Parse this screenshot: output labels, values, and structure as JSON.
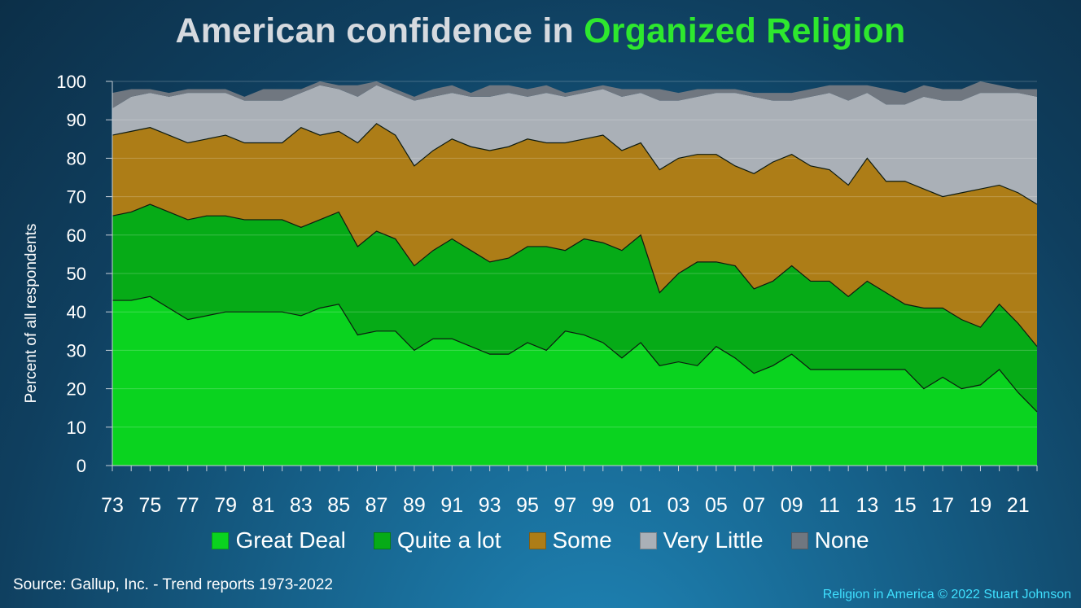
{
  "title": {
    "part1": "American confidence in ",
    "part2": "Organized Religion",
    "part1_color": "#d6dadf",
    "part2_color": "#2ee82e"
  },
  "source": "Source: Gallup, Inc. - Trend reports 1973-2022",
  "credit": "Religion in America © 2022 Stuart Johnson",
  "chart_data": {
    "type": "area",
    "stacked": true,
    "title": "American confidence in Organized Religion",
    "xlabel": "",
    "ylabel": "Percent of all respondents",
    "ylim": [
      0,
      100
    ],
    "yticks": [
      0,
      10,
      20,
      30,
      40,
      50,
      60,
      70,
      80,
      90,
      100
    ],
    "grid": "horizontal",
    "legend_position": "bottom",
    "x": [
      "1973",
      "1974",
      "1975",
      "1976",
      "1977",
      "1978",
      "1979",
      "1980",
      "1981",
      "1982",
      "1983",
      "1984",
      "1985",
      "1986",
      "1987",
      "1988",
      "1989",
      "1990",
      "1991",
      "1992",
      "1993",
      "1994",
      "1995",
      "1996",
      "1997",
      "1998",
      "1999",
      "2000",
      "2001",
      "2002",
      "2003",
      "2004",
      "2005",
      "2006",
      "2007",
      "2008",
      "2009",
      "2010",
      "2011",
      "2012",
      "2013",
      "2014",
      "2015",
      "2016",
      "2017",
      "2018",
      "2019",
      "2020",
      "2021",
      "2022"
    ],
    "x_tick_labels": [
      "73",
      "75",
      "77",
      "79",
      "81",
      "83",
      "85",
      "87",
      "89",
      "91",
      "93",
      "95",
      "97",
      "99",
      "01",
      "03",
      "05",
      "07",
      "09",
      "11",
      "13",
      "15",
      "17",
      "19",
      "21"
    ],
    "series": [
      {
        "name": "Great Deal",
        "color": "#0ad31f",
        "values": [
          43,
          43,
          44,
          41,
          38,
          39,
          40,
          40,
          40,
          40,
          39,
          41,
          42,
          34,
          35,
          35,
          30,
          33,
          33,
          31,
          29,
          29,
          32,
          30,
          35,
          34,
          32,
          28,
          32,
          26,
          27,
          26,
          31,
          28,
          24,
          26,
          29,
          25,
          25,
          25,
          25,
          25,
          25,
          20,
          23,
          20,
          21,
          25,
          19,
          14
        ]
      },
      {
        "name": "Quite a lot",
        "color": "#06ab17",
        "values": [
          22,
          23,
          24,
          25,
          26,
          26,
          25,
          24,
          24,
          24,
          23,
          23,
          24,
          23,
          26,
          24,
          22,
          23,
          26,
          25,
          24,
          25,
          25,
          27,
          21,
          25,
          26,
          28,
          28,
          19,
          23,
          27,
          22,
          24,
          22,
          22,
          23,
          23,
          23,
          19,
          23,
          20,
          17,
          21,
          18,
          18,
          15,
          17,
          18,
          17
        ]
      },
      {
        "name": "Some",
        "color": "#ad7d17",
        "values": [
          21,
          21,
          20,
          20,
          20,
          20,
          21,
          20,
          20,
          20,
          26,
          22,
          21,
          27,
          28,
          27,
          26,
          26,
          26,
          27,
          29,
          29,
          28,
          27,
          28,
          26,
          28,
          26,
          24,
          32,
          30,
          28,
          28,
          26,
          30,
          31,
          29,
          30,
          29,
          29,
          32,
          29,
          32,
          31,
          29,
          33,
          36,
          31,
          34,
          37
        ]
      },
      {
        "name": "Very Little",
        "color": "#aab0b7",
        "values": [
          7,
          9,
          9,
          10,
          13,
          12,
          11,
          11,
          11,
          11,
          9,
          13,
          11,
          12,
          10,
          11,
          17,
          14,
          12,
          13,
          14,
          14,
          11,
          13,
          12,
          12,
          12,
          14,
          13,
          18,
          15,
          15,
          16,
          19,
          20,
          16,
          14,
          18,
          20,
          22,
          17,
          20,
          20,
          24,
          25,
          24,
          25,
          24,
          26,
          28
        ]
      },
      {
        "name": "None",
        "color": "#707780",
        "values": [
          4,
          2,
          1,
          1,
          1,
          1,
          1,
          1,
          3,
          3,
          1,
          1,
          1,
          3,
          1,
          1,
          1,
          2,
          2,
          1,
          3,
          2,
          2,
          2,
          1,
          1,
          1,
          2,
          1,
          3,
          2,
          2,
          1,
          1,
          1,
          2,
          2,
          2,
          2,
          4,
          2,
          4,
          3,
          3,
          3,
          3,
          3,
          2,
          1,
          2
        ]
      }
    ]
  }
}
